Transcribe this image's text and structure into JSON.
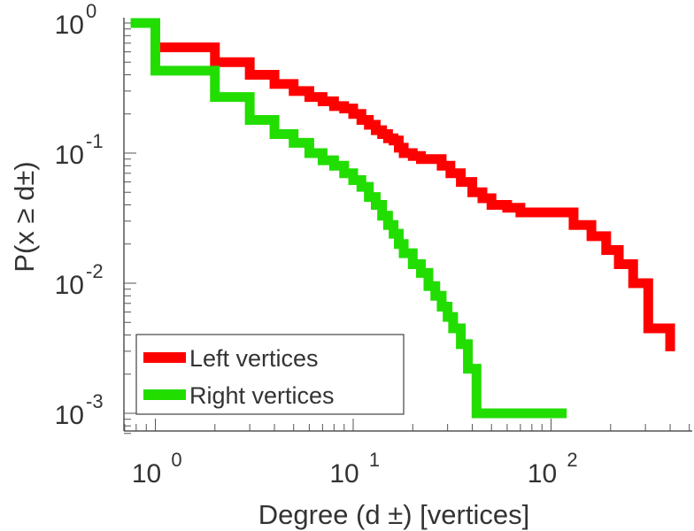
{
  "chart_data": {
    "type": "line",
    "xscale": "log",
    "yscale": "log",
    "xlim": [
      0.7,
      600
    ],
    "ylim": [
      0.0007,
      1
    ],
    "grid": false,
    "legend_position": "bottom-left",
    "xlabel": "Degree (d ±) [vertices]",
    "ylabel": "P(x ≥ d±)",
    "xticks": [
      {
        "base": "10",
        "exp": "0"
      },
      {
        "base": "10",
        "exp": "1"
      },
      {
        "base": "10",
        "exp": "2"
      }
    ],
    "yticks": [
      {
        "base": "10",
        "exp": "0"
      },
      {
        "base": "10",
        "exp": "-1"
      },
      {
        "base": "10",
        "exp": "-2"
      },
      {
        "base": "10",
        "exp": "-3"
      }
    ],
    "series": [
      {
        "name": "Left vertices",
        "color": "#ff0000",
        "step": true,
        "x": [
          1,
          2,
          3,
          4,
          5,
          6,
          7,
          8,
          9,
          10,
          11,
          12,
          13,
          14,
          15,
          16,
          17,
          18,
          20,
          22,
          25,
          28,
          31,
          35,
          40,
          45,
          50,
          60,
          70,
          80,
          100,
          130,
          160,
          190,
          220,
          260,
          310,
          400
        ],
        "y": [
          0.65,
          0.5,
          0.4,
          0.34,
          0.3,
          0.27,
          0.25,
          0.23,
          0.22,
          0.2,
          0.18,
          0.165,
          0.15,
          0.14,
          0.13,
          0.125,
          0.11,
          0.1,
          0.095,
          0.09,
          0.09,
          0.08,
          0.07,
          0.06,
          0.05,
          0.045,
          0.04,
          0.038,
          0.035,
          0.035,
          0.035,
          0.028,
          0.023,
          0.018,
          0.014,
          0.01,
          0.0045,
          0.003
        ]
      },
      {
        "name": "Right vertices",
        "color": "#22dd00",
        "step": true,
        "x": [
          0.75,
          1,
          2,
          3,
          4,
          5,
          6,
          7,
          8,
          9,
          10,
          11,
          12,
          13,
          14,
          15,
          16,
          17,
          18,
          20,
          22,
          24,
          26,
          28,
          30,
          32,
          35,
          38,
          42,
          50,
          60,
          80,
          100,
          120
        ],
        "y": [
          1,
          0.43,
          0.27,
          0.18,
          0.14,
          0.12,
          0.1,
          0.088,
          0.08,
          0.07,
          0.062,
          0.055,
          0.046,
          0.04,
          0.033,
          0.028,
          0.024,
          0.02,
          0.017,
          0.014,
          0.012,
          0.0095,
          0.008,
          0.0066,
          0.0055,
          0.0045,
          0.0034,
          0.0022,
          0.001,
          0.001,
          0.001,
          0.001,
          0.001,
          0.001
        ]
      }
    ]
  }
}
